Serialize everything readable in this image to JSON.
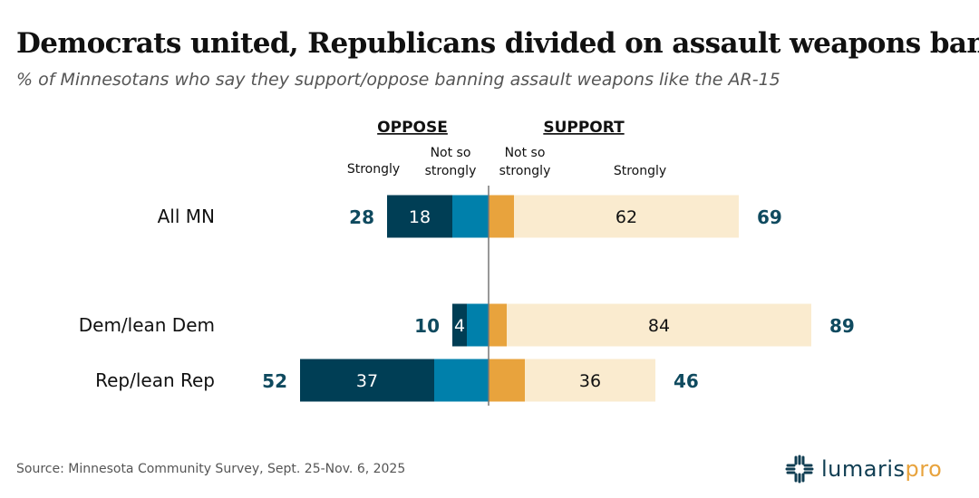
{
  "title": "Democrats united, Republicans divided on assault weapons ban",
  "subtitle": "% of Minnesotans who say they support/oppose banning assault weapons like the AR-15",
  "source": "Source: Minnesota Community Survey, Sept. 25-Nov. 6, 2025",
  "logo": {
    "text": "lumaris",
    "accent": "pro"
  },
  "chart_data": {
    "type": "bar",
    "orientation": "horizontal-diverging",
    "group_headers": {
      "oppose": "OPPOSE",
      "support": "SUPPORT"
    },
    "segment_labels": {
      "oppose_strongly": "Strongly",
      "oppose_not_so": "Not so strongly",
      "support_not_so": "Not so strongly",
      "support_strongly": "Strongly"
    },
    "categories": [
      "All MN",
      "Dem/lean Dem",
      "Rep/lean Rep"
    ],
    "series": [
      {
        "name": "Oppose strongly",
        "values": [
          18,
          4,
          37
        ],
        "color": "#003e55"
      },
      {
        "name": "Oppose not so strongly",
        "values": [
          10,
          6,
          15
        ],
        "color": "#0080ab"
      },
      {
        "name": "Support not so strongly",
        "values": [
          7,
          5,
          10
        ],
        "color": "#e8a33d"
      },
      {
        "name": "Support strongly",
        "values": [
          62,
          84,
          36
        ],
        "color": "#faebcf"
      }
    ],
    "oppose_totals": [
      28,
      10,
      52
    ],
    "support_totals": [
      69,
      89,
      46
    ],
    "total_color": "#0f4a5f"
  }
}
